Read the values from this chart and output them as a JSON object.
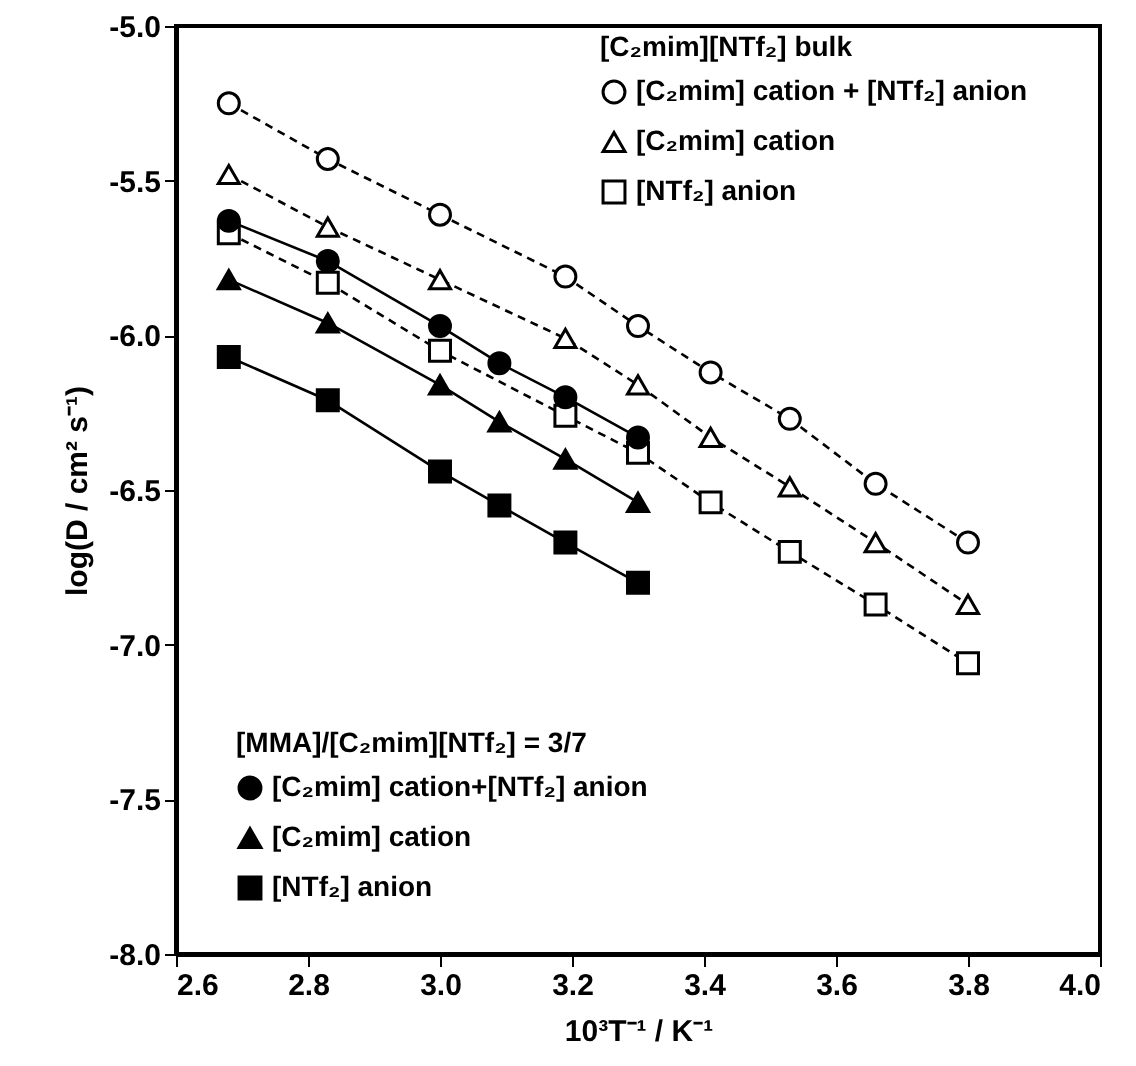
{
  "chart_data": {
    "type": "line",
    "xlabel": "10³T⁻¹ / K⁻¹",
    "ylabel": "log(D / cm² s⁻¹)",
    "legend_title": [
      "[C₂mim][NTf₂] bulk",
      "[MMA]/[C₂mim][NTf₂] = 3/7"
    ],
    "legend": "top right",
    "xlim": [
      2.6,
      4.0
    ],
    "ylim": [
      -8.0,
      -5.0
    ],
    "xticks": [
      {
        "value": 2.6,
        "label": "2.6"
      },
      {
        "value": 2.8,
        "label": "2.8"
      },
      {
        "value": 3.0,
        "label": "3.0"
      },
      {
        "value": 3.2,
        "label": "3.2"
      },
      {
        "value": 3.4,
        "label": "3.4"
      },
      {
        "value": 3.6,
        "label": "3.6"
      },
      {
        "value": 3.8,
        "label": "3.8"
      },
      {
        "value": 4.0,
        "label": "4.0"
      }
    ],
    "yticks": [
      {
        "value": -8.0,
        "label": "-8.0"
      },
      {
        "value": -7.5,
        "label": "-7.5"
      },
      {
        "value": -7.0,
        "label": "-7.0"
      },
      {
        "value": -6.5,
        "label": "-6.5"
      },
      {
        "value": -6.0,
        "label": "-6.0"
      },
      {
        "value": -5.5,
        "label": "-5.5"
      },
      {
        "value": -5.0,
        "label": "-5.0"
      }
    ],
    "series": [
      {
        "name": "[C₂mim] cation + [NTf₂] anion",
        "color": "#000000",
        "marker": "circle",
        "line_style": "dashed",
        "x": [
          2.68,
          2.83,
          3.0,
          3.19,
          3.3,
          3.41,
          3.53,
          3.66,
          3.8
        ],
        "values": [
          -5.25,
          -5.43,
          -5.61,
          -5.81,
          -5.97,
          -6.12,
          -6.27,
          -6.48,
          -6.67
        ]
      },
      {
        "name": "[C₂mim] cation",
        "color": "#000000",
        "marker": "triangle",
        "line_style": "dashed",
        "x": [
          2.68,
          2.83,
          3.0,
          3.19,
          3.3,
          3.41,
          3.53,
          3.66,
          3.8
        ],
        "values": [
          -5.48,
          -5.65,
          -5.82,
          -6.01,
          -6.16,
          -6.33,
          -6.49,
          -6.67,
          -6.87
        ]
      },
      {
        "name": "[NTf₂] anion",
        "color": "#000000",
        "marker": "square",
        "line_style": "dashed",
        "x": [
          2.68,
          2.83,
          3.0,
          3.19,
          3.3,
          3.41,
          3.53,
          3.66,
          3.8
        ],
        "values": [
          -5.67,
          -5.83,
          -6.05,
          -6.26,
          -6.38,
          -6.54,
          -6.7,
          -6.87,
          -7.06
        ]
      },
      {
        "name": "[C₂mim] cation+[NTf₂] anion",
        "color": "#000000",
        "marker": "circle",
        "line_style": "solid",
        "x": [
          2.68,
          2.83,
          3.0,
          3.09,
          3.19,
          3.3
        ],
        "values": [
          -5.63,
          -5.76,
          -5.97,
          -6.09,
          -6.2,
          -6.33
        ]
      },
      {
        "name": "[C₂mim] cation",
        "color": "#000000",
        "marker": "triangle",
        "line_style": "solid",
        "x": [
          2.68,
          2.83,
          3.0,
          3.09,
          3.19,
          3.3
        ],
        "values": [
          -5.82,
          -5.96,
          -6.16,
          -6.28,
          -6.4,
          -6.54
        ]
      },
      {
        "name": "[NTf₂] anion",
        "color": "#000000",
        "marker": "square",
        "line_style": "solid",
        "x": [
          2.68,
          2.83,
          3.0,
          3.09,
          3.19,
          3.3
        ],
        "values": [
          -6.07,
          -6.21,
          -6.44,
          -6.55,
          -6.67,
          -6.8
        ]
      }
    ]
  }
}
